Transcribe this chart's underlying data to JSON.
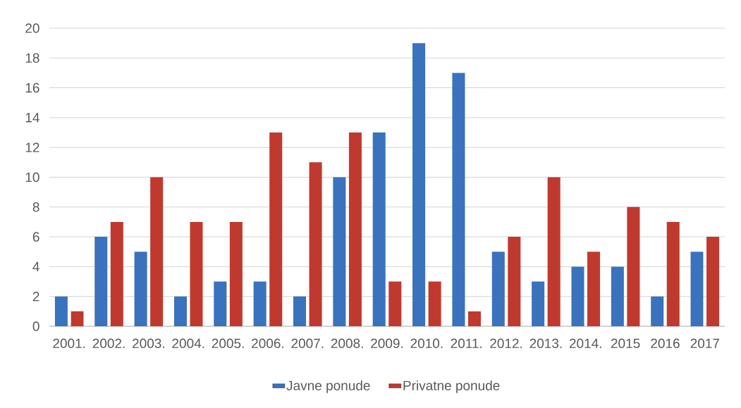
{
  "chart_data": {
    "type": "bar",
    "categories": [
      "2001.",
      "2002.",
      "2003.",
      "2004.",
      "2005.",
      "2006.",
      "2007.",
      "2008.",
      "2009.",
      "2010.",
      "2011.",
      "2012.",
      "2013.",
      "2014.",
      "2015",
      "2016",
      "2017"
    ],
    "series": [
      {
        "name": "Javne ponude",
        "color": "#3a72bd",
        "values": [
          2,
          6,
          5,
          2,
          3,
          3,
          2,
          10,
          13,
          19,
          17,
          5,
          3,
          4,
          4,
          2,
          5
        ]
      },
      {
        "name": "Privatne ponude",
        "color": "#c0392f",
        "values": [
          1,
          7,
          10,
          7,
          7,
          13,
          11,
          13,
          3,
          3,
          1,
          6,
          10,
          5,
          8,
          7,
          6
        ]
      }
    ],
    "ylim": [
      0,
      20
    ],
    "yticks": [
      0,
      2,
      4,
      6,
      8,
      10,
      12,
      14,
      16,
      18,
      20
    ],
    "grid": "y",
    "legend": "bottom"
  }
}
